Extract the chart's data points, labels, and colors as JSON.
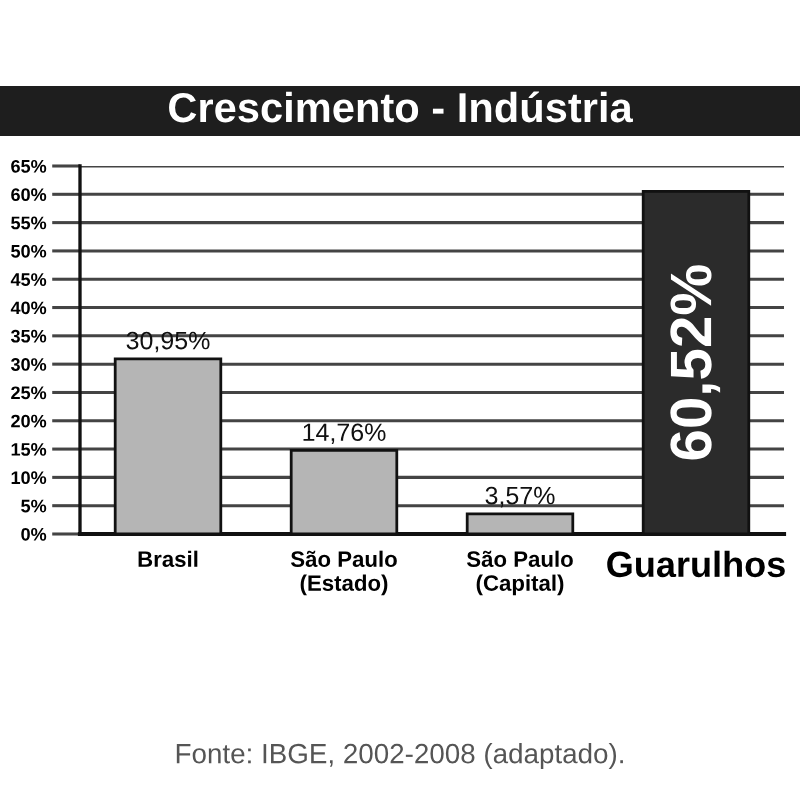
{
  "chart_data": {
    "type": "bar",
    "title": "Crescimento - Indústria",
    "categories": [
      "Brasil",
      "São Paulo\n(Estado)",
      "São Paulo\n(Capital)",
      "Guarulhos"
    ],
    "values": [
      30.95,
      14.76,
      3.57,
      60.52
    ],
    "colors": [
      "#b5b5b5",
      "#b5b5b5",
      "#b5b5b5",
      "#2b2b2b"
    ],
    "value_labels": [
      "30,95%",
      "14,76%",
      "3,57%",
      "60,52%"
    ],
    "ylim": [
      0,
      65
    ],
    "yticks": [
      {
        "value": 0,
        "label": "0%"
      },
      {
        "value": 5,
        "label": "5%"
      },
      {
        "value": 10,
        "label": "10%"
      },
      {
        "value": 15,
        "label": "15%"
      },
      {
        "value": 20,
        "label": "20%"
      },
      {
        "value": 25,
        "label": "25%"
      },
      {
        "value": 30,
        "label": "30%"
      },
      {
        "value": 35,
        "label": "35%"
      },
      {
        "value": 40,
        "label": "40%"
      },
      {
        "value": 45,
        "label": "45%"
      },
      {
        "value": 50,
        "label": "50%"
      },
      {
        "value": 55,
        "label": "55%"
      },
      {
        "value": 60,
        "label": "60%"
      },
      {
        "value": 65,
        "label": "65%"
      }
    ],
    "grid": "y",
    "annotations": [
      "Fonte: IBGE, 2002-2008 (adaptado)."
    ]
  }
}
